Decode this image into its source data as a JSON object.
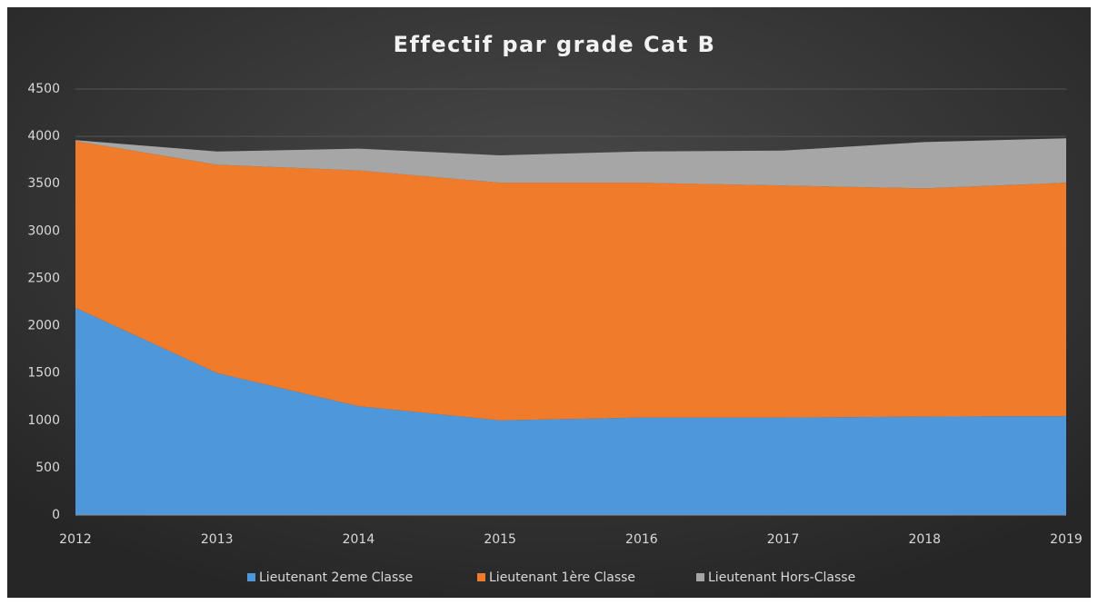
{
  "chart_data": {
    "type": "area",
    "stacked": true,
    "title": "Effectif par grade Cat B",
    "categories": [
      "2012",
      "2013",
      "2014",
      "2015",
      "2016",
      "2017",
      "2018",
      "2019"
    ],
    "series": [
      {
        "name": "Lieutenant 2eme Classe",
        "color": "#4f97db",
        "values": [
          2190,
          1500,
          1150,
          1000,
          1030,
          1030,
          1040,
          1045
        ]
      },
      {
        "name": "Lieutenant 1ère Classe",
        "color": "#f07b2b",
        "values": [
          1760,
          2200,
          2490,
          2510,
          2480,
          2450,
          2410,
          2465
        ]
      },
      {
        "name": "Lieutenant Hors-Classe",
        "color": "#a6a6a6",
        "values": [
          10,
          140,
          230,
          290,
          330,
          370,
          490,
          470
        ]
      }
    ],
    "ylim": [
      0,
      4500
    ],
    "yticks": [
      0,
      500,
      1000,
      1500,
      2000,
      2500,
      3000,
      3500,
      4000,
      4500
    ],
    "grid": true,
    "legend": "bottom"
  }
}
